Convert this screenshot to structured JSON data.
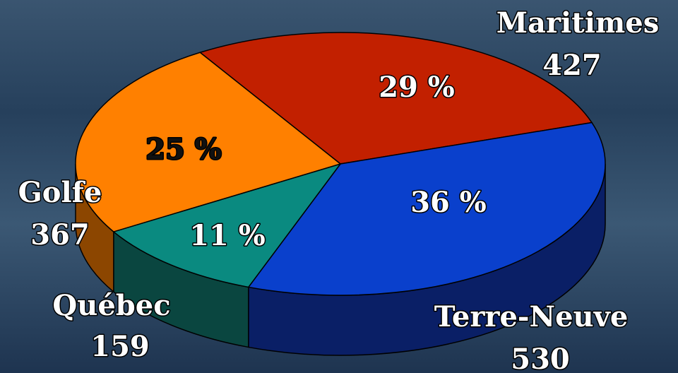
{
  "chart_data": {
    "type": "pie3d",
    "categories": [
      "Maritimes",
      "Terre-Neuve",
      "Québec",
      "Golfe"
    ],
    "values": [
      427,
      530,
      159,
      367
    ],
    "percentages": [
      29,
      36,
      11,
      25
    ],
    "percentage_labels": [
      "29 %",
      "36 %",
      "11 %",
      "25 %"
    ],
    "colors": [
      "#c22000",
      "#0a40cc",
      "#0a8a80",
      "#ff8000"
    ],
    "side_colors": [
      "#6e1400",
      "#0a1f66",
      "#0a4640",
      "#8c4600"
    ],
    "label_colors": [
      "#ffffff",
      "#ffffff",
      "#ffffff",
      "#111111"
    ]
  }
}
